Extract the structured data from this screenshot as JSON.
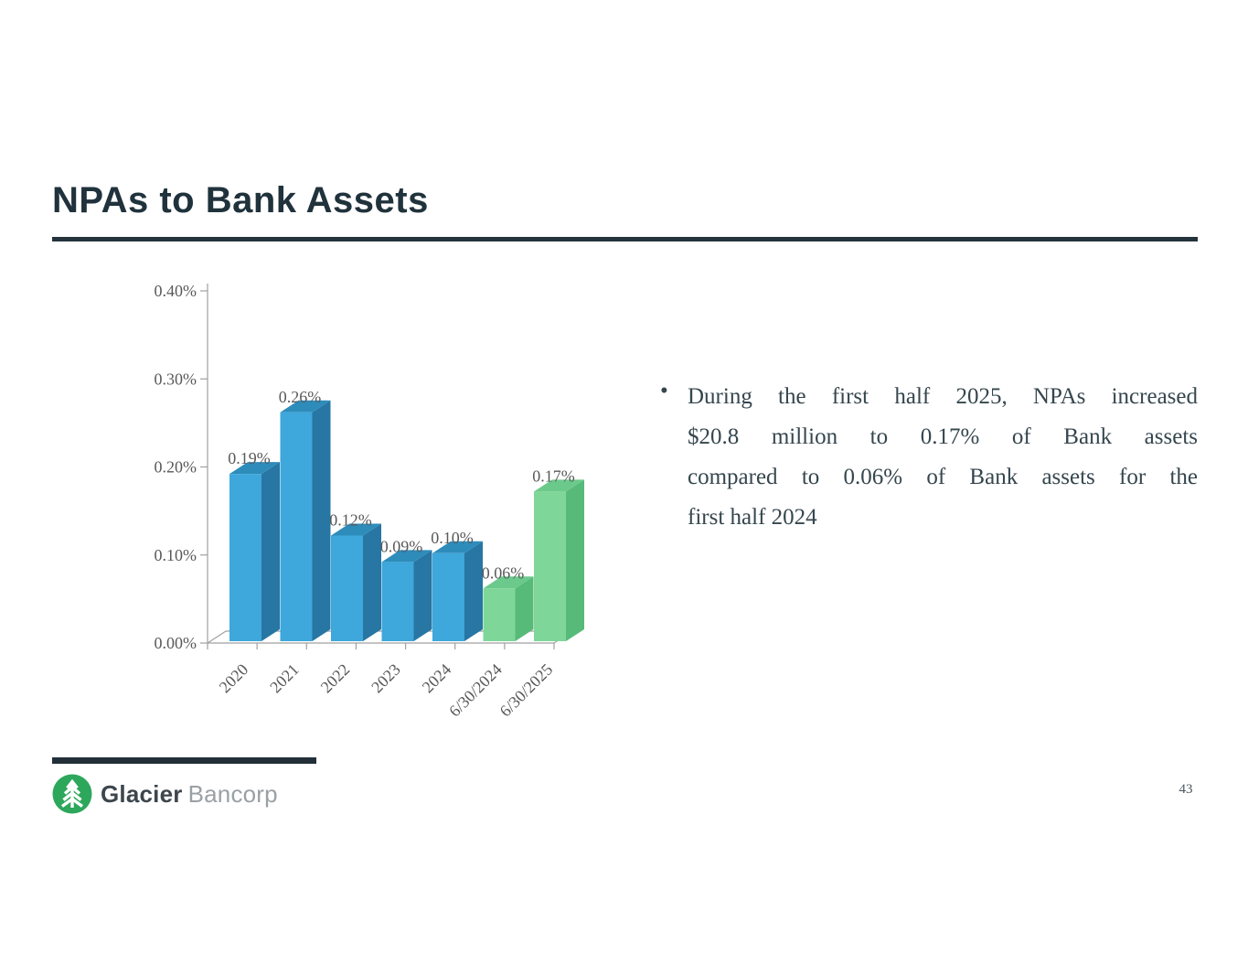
{
  "slide": {
    "title": "NPAs to Bank Assets",
    "page_number": "43"
  },
  "bullet": {
    "marker": "•",
    "lines": [
      "During the first half 2025, NPAs increased",
      "$20.8 million to 0.17% of Bank assets",
      "compared to 0.06% of Bank assets for the",
      "first half 2024"
    ]
  },
  "logo": {
    "company": "Glacier Bancorp",
    "text_primary": "Glacier",
    "text_secondary": "Bancorp",
    "circle_color": "#2da75b",
    "tree_color": "#ffffff"
  },
  "chart_data": {
    "type": "bar",
    "style": "3d-column",
    "title": "",
    "xlabel": "",
    "ylabel": "",
    "categories": [
      "2020",
      "2021",
      "2022",
      "2023",
      "2024",
      "6/30/2024",
      "6/30/2025"
    ],
    "values": [
      0.19,
      0.26,
      0.12,
      0.09,
      0.1,
      0.06,
      0.17
    ],
    "data_labels": [
      "0.19%",
      "0.26%",
      "0.12%",
      "0.09%",
      "0.10%",
      "0.06%",
      "0.17%"
    ],
    "series_color_keys": [
      "blue",
      "blue",
      "blue",
      "blue",
      "blue",
      "green",
      "green"
    ],
    "colors": {
      "blue": {
        "front": "#3ea7db",
        "side": "#2776a3",
        "top": "#2e8cbb"
      },
      "green": {
        "front": "#7fd699",
        "side": "#57ba79",
        "top": "#6bc98c"
      }
    },
    "y_ticks": [
      "0.40%",
      "0.30%",
      "0.20%",
      "0.10%",
      "0.00%"
    ],
    "ylim": [
      0,
      0.4
    ],
    "unit": "%",
    "grid": false,
    "legend": null,
    "axis_color": "#a0a0a0",
    "text_color": "#595959"
  }
}
